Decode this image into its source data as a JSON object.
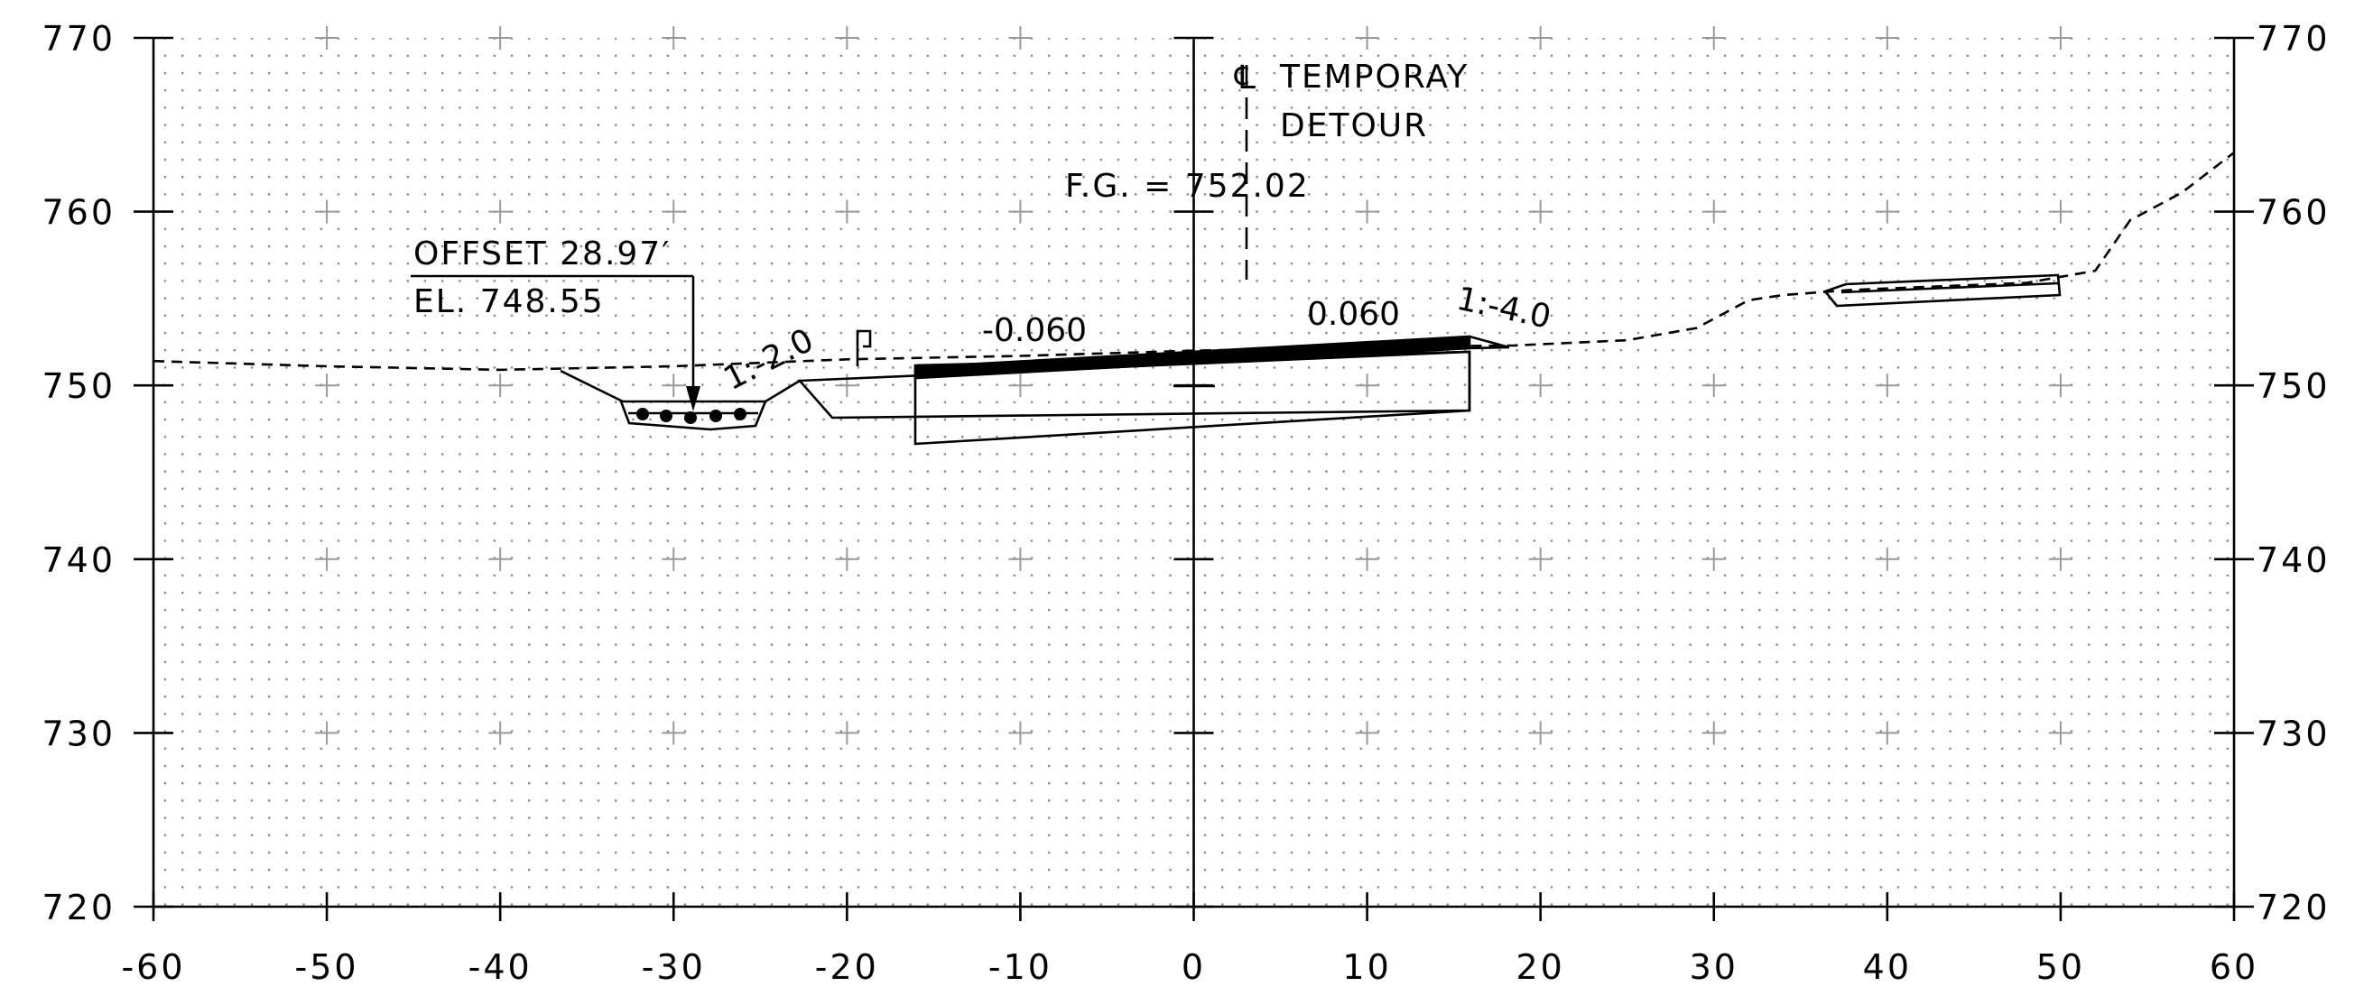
{
  "section": {
    "x_axis": {
      "min": -60,
      "max": 60,
      "step": 10,
      "tick_labels": [
        "-60",
        "-50",
        "-40",
        "-30",
        "-20",
        "-10",
        "0",
        "10",
        "20",
        "30",
        "40",
        "50",
        "60"
      ]
    },
    "y_axis": {
      "min": 720,
      "max": 770,
      "step": 10,
      "tick_labels": [
        "770",
        "760",
        "750",
        "740",
        "730",
        "720"
      ]
    },
    "centerline": {
      "symbol": "℄",
      "label_line1": "TEMPORAY",
      "label_line2": "DETOUR",
      "grade_label": "F.G. = 752.02",
      "grade": 752.02
    },
    "offset_callout": {
      "line1": "OFFSET 28.97′",
      "line2": "EL. 748.55",
      "offset": -28.97,
      "elevation": 748.55
    },
    "slope_labels": {
      "left_cut": "1:-2.0",
      "left_lane": "-0.060",
      "right_lane": "0.060",
      "right_fill": "1:-4.0"
    },
    "existing_ground": [
      [
        -60,
        751.4
      ],
      [
        -50,
        751.1
      ],
      [
        -40,
        750.9
      ],
      [
        -30,
        751.1
      ],
      [
        -20,
        751.5
      ],
      [
        -10,
        751.7
      ],
      [
        0,
        752.0
      ],
      [
        10,
        752.2
      ],
      [
        18.5,
        752.3
      ],
      [
        25,
        752.6
      ],
      [
        29,
        753.3
      ],
      [
        32,
        754.9
      ],
      [
        34,
        755.2
      ],
      [
        38,
        755.5
      ],
      [
        43,
        755.7
      ],
      [
        48,
        755.9
      ],
      [
        52,
        756.6
      ],
      [
        54,
        759.5
      ],
      [
        57,
        761.1
      ],
      [
        60,
        763.4
      ]
    ],
    "colors": {
      "ink": "#000000",
      "grid": "#000000",
      "background": "#ffffff"
    }
  }
}
